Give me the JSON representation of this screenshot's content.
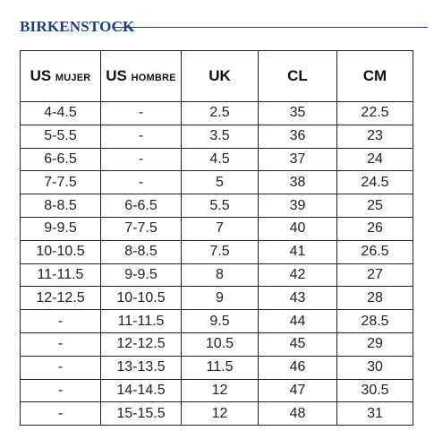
{
  "brand": {
    "name": "BIRKENSTOCK",
    "color": "#1f3f7a"
  },
  "table": {
    "headers": [
      {
        "main": "US",
        "sub": "MUJER"
      },
      {
        "main": "US",
        "sub": "HOMBRE"
      },
      {
        "main": "UK",
        "sub": ""
      },
      {
        "main": "CL",
        "sub": ""
      },
      {
        "main": "CM",
        "sub": ""
      }
    ],
    "rows": [
      [
        "4-4.5",
        "-",
        "2.5",
        "35",
        "22.5"
      ],
      [
        "5-5.5",
        "-",
        "3.5",
        "36",
        "23"
      ],
      [
        "6-6.5",
        "-",
        "4.5",
        "37",
        "24"
      ],
      [
        "7-7.5",
        "-",
        "5",
        "38",
        "24.5"
      ],
      [
        "8-8.5",
        "6-6.5",
        "5.5",
        "39",
        "25"
      ],
      [
        "9-9.5",
        "7-7.5",
        "7",
        "40",
        "26"
      ],
      [
        "10-10.5",
        "8-8.5",
        "7.5",
        "41",
        "26.5"
      ],
      [
        "11-11.5",
        "9-9.5",
        "8",
        "42",
        "27"
      ],
      [
        "12-12.5",
        "10-10.5",
        "9",
        "43",
        "28"
      ],
      [
        "-",
        "11-11.5",
        "9.5",
        "44",
        "28.5"
      ],
      [
        "-",
        "12-12.5",
        "10.5",
        "45",
        "29"
      ],
      [
        "-",
        "13-13.5",
        "11.5",
        "46",
        "30"
      ],
      [
        "-",
        "14-14.5",
        "12",
        "47",
        "30.5"
      ],
      [
        "-",
        "15-15.5",
        "12",
        "48",
        "31"
      ]
    ]
  }
}
